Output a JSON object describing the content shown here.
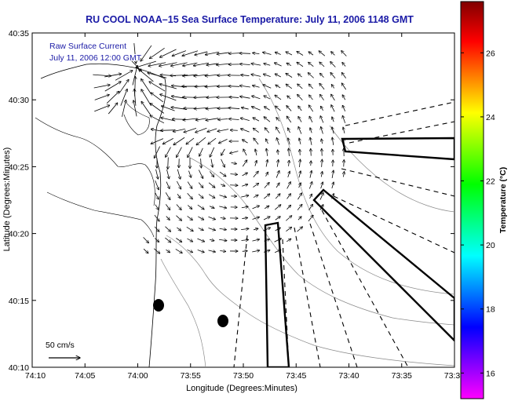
{
  "chart_data": {
    "type": "map",
    "title": "RU COOL  NOAA–15  Sea Surface Temperature:  July 11, 2006 1148 GMT",
    "xlabel": "Longitude (Degrees:Minutes)",
    "ylabel": "Latitude (Degrees:Minutes)",
    "x_ticks": [
      "74:10",
      "74:05",
      "74:00",
      "73:55",
      "73:50",
      "73:45",
      "73:40",
      "73:35",
      "73:3"
    ],
    "y_ticks": [
      "40:35",
      "40:30",
      "40:25",
      "40:20",
      "40:15",
      "40:10"
    ],
    "annotations": [
      "Raw Surface Current",
      "July 11, 2006 12:00 GMT"
    ],
    "scale_label": "50 cm/s",
    "colorbar": {
      "label": "Temperature (°C)",
      "ticks": [
        "26",
        "24",
        "22",
        "20",
        "18",
        "16"
      ],
      "tick_values": [
        26,
        24,
        22,
        20,
        18,
        16
      ],
      "range": [
        15.2,
        27.6
      ],
      "colors": [
        "#ff00ff",
        "#8000ff",
        "#0000ff",
        "#0080ff",
        "#00ffff",
        "#00ff80",
        "#00ff00",
        "#80ff00",
        "#ffff00",
        "#ff8000",
        "#ff0000",
        "#800000"
      ]
    }
  }
}
